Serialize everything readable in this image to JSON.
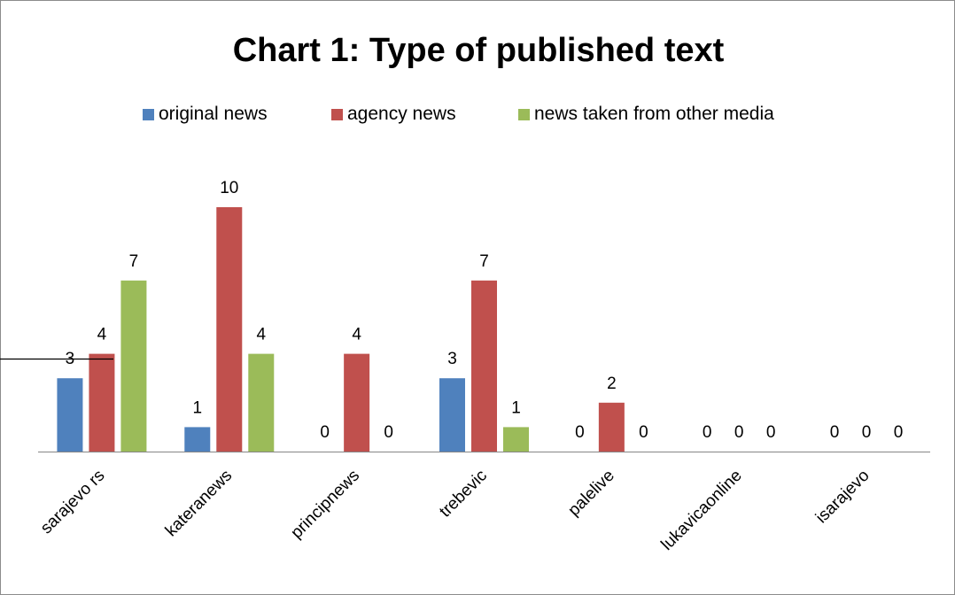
{
  "chart_data": {
    "type": "bar",
    "title": "Chart 1: Type of published text",
    "xlabel": "",
    "ylabel": "",
    "categories": [
      "sarajevo rs",
      "kateranews",
      "principnews",
      "trebevic",
      "palelive",
      "lukavicaonline",
      "isarajevo"
    ],
    "series": [
      {
        "name": "original news",
        "color": "#4f81bd",
        "values": [
          3,
          1,
          0,
          3,
          0,
          0,
          0
        ]
      },
      {
        "name": "agency news",
        "color": "#c0504d",
        "values": [
          4,
          10,
          4,
          7,
          2,
          0,
          0
        ]
      },
      {
        "name": "news taken from other media",
        "color": "#9bbb59",
        "values": [
          7,
          4,
          0,
          1,
          0,
          0,
          0
        ]
      }
    ],
    "ylim": [
      0,
      10
    ],
    "grid": false,
    "legend_position": "top",
    "data_labels": true,
    "x_tick_rotation": "diagonal"
  }
}
